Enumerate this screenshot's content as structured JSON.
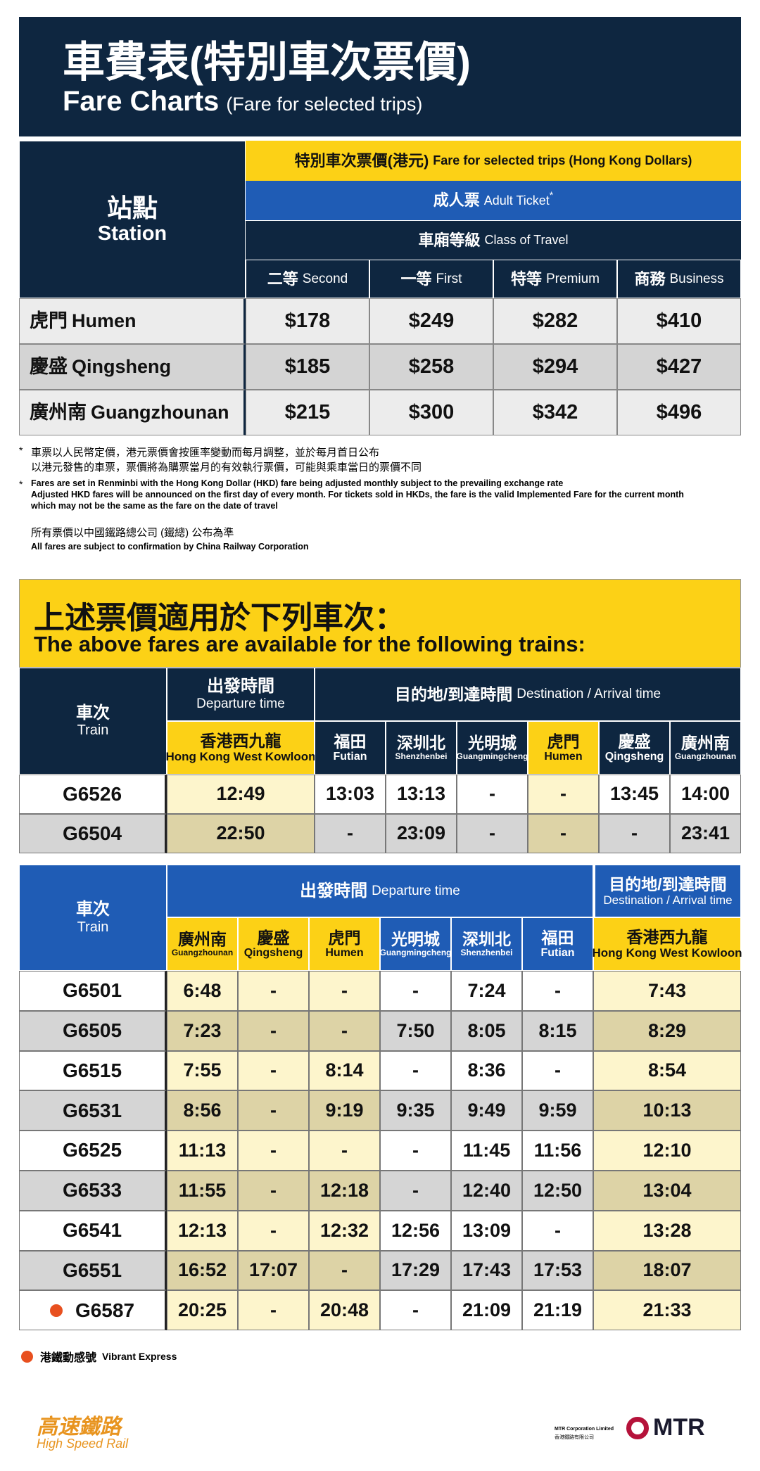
{
  "header": {
    "title_zh": "車費表(特別車次票價)",
    "title_en": "Fare Charts",
    "subtitle_en": "(Fare for selected trips)"
  },
  "fare_table": {
    "station_zh": "站點",
    "station_en": "Station",
    "fare_zh": "特別車次票價(港元)",
    "fare_en": "Fare for selected trips (Hong Kong Dollars)",
    "ticket_zh": "成人票",
    "ticket_en": "Adult Ticket",
    "ticket_mark": "*",
    "class_zh": "車廂等級",
    "class_en": "Class of Travel",
    "classes": [
      {
        "zh": "二等",
        "en": "Second"
      },
      {
        "zh": "一等",
        "en": "First"
      },
      {
        "zh": "特等",
        "en": "Premium"
      },
      {
        "zh": "商務",
        "en": "Business"
      }
    ],
    "rows": [
      {
        "zh": "虎門",
        "en": "Humen",
        "fares": [
          "$178",
          "$249",
          "$282",
          "$410"
        ]
      },
      {
        "zh": "慶盛",
        "en": "Qingsheng",
        "fares": [
          "$185",
          "$258",
          "$294",
          "$427"
        ]
      },
      {
        "zh": "廣州南",
        "en": "Guangzhounan",
        "fares": [
          "$215",
          "$300",
          "$342",
          "$496"
        ]
      }
    ]
  },
  "notes": [
    {
      "mark": "*",
      "lines": [
        "車票以人民幣定價，港元票價會按匯率變動而每月調整，並於每月首日公布",
        "以港元發售的車票，票價將為購票當月的有效執行票價，可能與乘車當日的票價不同"
      ]
    },
    {
      "mark": "*",
      "lines": [
        "Fares are set in Renminbi with the Hong Kong Dollar (HKD) fare being adjusted monthly subject to the prevailing exchange rate",
        "Adjusted HKD fares will be announced on the first day of every month.  For tickets sold in HKDs, the fare is the valid Implemented Fare for the current month",
        "which may not be the same as the fare on the date of travel"
      ]
    }
  ],
  "confirm": [
    "所有票價以中國鐵路總公司 (鐵總) 公布為準",
    "All fares are subject to confirmation by China Railway Corporation"
  ],
  "trains_title": {
    "zh": "上述票價適用於下列車次：",
    "en": "The above fares are available for the following trains:"
  },
  "timetable_1": {
    "train_zh": "車次",
    "train_en": "Train",
    "departure_zh": "出發時間",
    "departure_en": "Departure time",
    "destination_zh": "目的地/到達時間",
    "destination_en": "Destination / Arrival time",
    "stations": [
      {
        "zh": "香港西九龍",
        "en": "Hong Kong West Kowloon"
      },
      {
        "zh": "福田",
        "en": "Futian"
      },
      {
        "zh": "深圳北",
        "en": "Shenzhenbei"
      },
      {
        "zh": "光明城",
        "en": "Guangmingcheng"
      },
      {
        "zh": "虎門",
        "en": "Humen"
      },
      {
        "zh": "慶盛",
        "en": "Qingsheng"
      },
      {
        "zh": "廣州南",
        "en": "Guangzhounan"
      }
    ],
    "rows": [
      {
        "train": "G6526",
        "times": [
          "12:49",
          "13:03",
          "13:13",
          "-",
          "-",
          "13:45",
          "14:00"
        ]
      },
      {
        "train": "G6504",
        "times": [
          "22:50",
          "-",
          "23:09",
          "-",
          "-",
          "-",
          "23:41"
        ]
      }
    ]
  },
  "timetable_2": {
    "train_zh": "車次",
    "train_en": "Train",
    "departure_zh": "出發時間",
    "departure_en": "Departure time",
    "destination_zh": "目的地/到達時間",
    "destination_en": "Destination / Arrival time",
    "stations": [
      {
        "zh": "廣州南",
        "en": "Guangzhounan"
      },
      {
        "zh": "慶盛",
        "en": "Qingsheng"
      },
      {
        "zh": "虎門",
        "en": "Humen"
      },
      {
        "zh": "光明城",
        "en": "Guangmingcheng"
      },
      {
        "zh": "深圳北",
        "en": "Shenzhenbei"
      },
      {
        "zh": "福田",
        "en": "Futian"
      },
      {
        "zh": "香港西九龍",
        "en": "Hong Kong West Kowloon"
      }
    ],
    "rows": [
      {
        "train": "G6501",
        "times": [
          "6:48",
          "-",
          "-",
          "-",
          "7:24",
          "-",
          "7:43"
        ]
      },
      {
        "train": "G6505",
        "times": [
          "7:23",
          "-",
          "-",
          "7:50",
          "8:05",
          "8:15",
          "8:29"
        ]
      },
      {
        "train": "G6515",
        "times": [
          "7:55",
          "-",
          "8:14",
          "-",
          "8:36",
          "-",
          "8:54"
        ]
      },
      {
        "train": "G6531",
        "times": [
          "8:56",
          "-",
          "9:19",
          "9:35",
          "9:49",
          "9:59",
          "10:13"
        ]
      },
      {
        "train": "G6525",
        "times": [
          "11:13",
          "-",
          "-",
          "-",
          "11:45",
          "11:56",
          "12:10"
        ]
      },
      {
        "train": "G6533",
        "times": [
          "11:55",
          "-",
          "12:18",
          "-",
          "12:40",
          "12:50",
          "13:04"
        ]
      },
      {
        "train": "G6541",
        "times": [
          "12:13",
          "-",
          "12:32",
          "12:56",
          "13:09",
          "-",
          "13:28"
        ]
      },
      {
        "train": "G6551",
        "times": [
          "16:52",
          "17:07",
          "-",
          "17:29",
          "17:43",
          "17:53",
          "18:07"
        ]
      },
      {
        "train": "G6587",
        "express": true,
        "times": [
          "20:25",
          "-",
          "20:48",
          "-",
          "21:09",
          "21:19",
          "21:33"
        ]
      }
    ]
  },
  "legend": {
    "zh": "港鐵動感號",
    "en": "Vibrant Express"
  },
  "footer": {
    "hsr_zh": "高速鐵路",
    "hsr_en": "High Speed Rail",
    "corp_en": "MTR Corporation Limited",
    "corp_zh": "香港鐵路有限公司",
    "mtr": "MTR"
  }
}
